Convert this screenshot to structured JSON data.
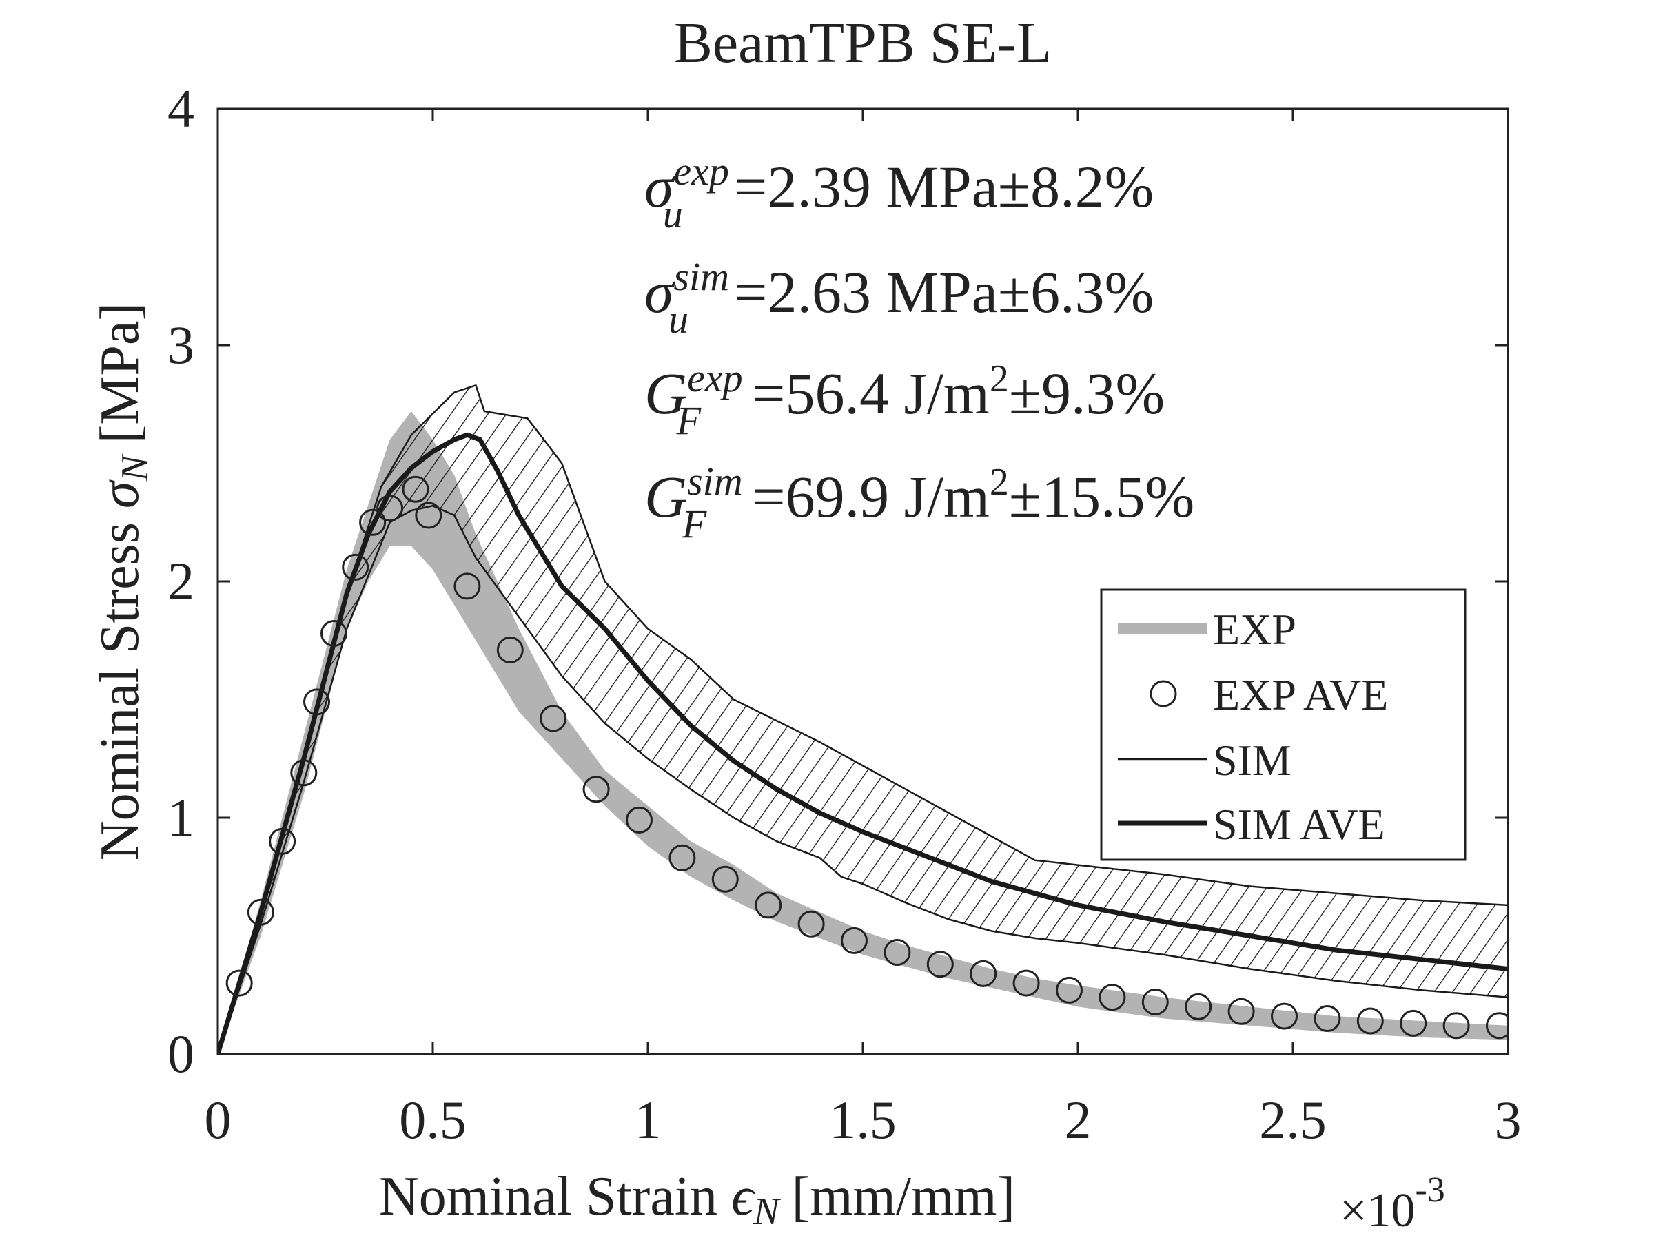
{
  "chart_data": {
    "type": "line",
    "title": "BeamTPB SE-L",
    "xlabel": {
      "prefix": "Nominal Strain ",
      "symbol": "ϵ",
      "subscript": "N",
      "unit": "[mm/mm]",
      "exponent_mult": "×10",
      "exponent_power": "-3"
    },
    "ylabel": {
      "prefix": "Nominal Stress ",
      "symbol": "σ",
      "subscript": "N",
      "unit": "[MPa]"
    },
    "xlim": [
      0,
      3
    ],
    "ylim": [
      0,
      4
    ],
    "xticks": [
      {
        "value": 0,
        "label": "0"
      },
      {
        "value": 0.5,
        "label": "0.5"
      },
      {
        "value": 1,
        "label": "1"
      },
      {
        "value": 1.5,
        "label": "1.5"
      },
      {
        "value": 2,
        "label": "2"
      },
      {
        "value": 2.5,
        "label": "2.5"
      },
      {
        "value": 3,
        "label": "3"
      }
    ],
    "yticks": [
      {
        "value": 0,
        "label": "0"
      },
      {
        "value": 1,
        "label": "1"
      },
      {
        "value": 2,
        "label": "2"
      },
      {
        "value": 3,
        "label": "3"
      },
      {
        "value": 4,
        "label": "4"
      }
    ],
    "annotations": [
      {
        "base": "σ",
        "sup": "exp",
        "sub": "u",
        "text": "=2.39 MPa±8.2%"
      },
      {
        "base": "σ",
        "sup": "sim",
        "sub": "u",
        "text": "=2.63 MPa±6.3%"
      },
      {
        "base": "G",
        "sup": "exp",
        "sub": "F",
        "text": "=56.4 J/m",
        "power": "2",
        "tail": "±9.3%"
      },
      {
        "base": "G",
        "sup": "sim",
        "sub": "F",
        "text": "=69.9 J/m",
        "power": "2",
        "tail": "±15.5%"
      }
    ],
    "legend": {
      "position": "right-middle",
      "entries": [
        {
          "label": "EXP",
          "style": "gray-band"
        },
        {
          "label": "EXP AVE",
          "style": "circle-marker"
        },
        {
          "label": "SIM",
          "style": "thin-line"
        },
        {
          "label": "SIM AVE",
          "style": "thick-line"
        }
      ]
    },
    "series": [
      {
        "name": "EXP",
        "kind": "band",
        "color": "#b3b3b3",
        "upper": [
          [
            0,
            0
          ],
          [
            0.1,
            0.65
          ],
          [
            0.2,
            1.35
          ],
          [
            0.3,
            2.05
          ],
          [
            0.4,
            2.6
          ],
          [
            0.45,
            2.72
          ],
          [
            0.5,
            2.6
          ],
          [
            0.55,
            2.45
          ],
          [
            0.6,
            2.2
          ],
          [
            0.7,
            1.8
          ],
          [
            0.8,
            1.45
          ],
          [
            0.9,
            1.2
          ],
          [
            1.0,
            1.05
          ],
          [
            1.1,
            0.9
          ],
          [
            1.2,
            0.8
          ],
          [
            1.3,
            0.68
          ],
          [
            1.4,
            0.6
          ],
          [
            1.5,
            0.52
          ],
          [
            1.6,
            0.46
          ],
          [
            1.7,
            0.41
          ],
          [
            1.8,
            0.36
          ],
          [
            1.9,
            0.32
          ],
          [
            2.0,
            0.29
          ],
          [
            2.2,
            0.24
          ],
          [
            2.4,
            0.2
          ],
          [
            2.6,
            0.16
          ],
          [
            2.8,
            0.14
          ],
          [
            3.0,
            0.12
          ]
        ],
        "lower": [
          [
            0,
            0
          ],
          [
            0.1,
            0.5
          ],
          [
            0.2,
            1.1
          ],
          [
            0.3,
            1.8
          ],
          [
            0.35,
            2.0
          ],
          [
            0.4,
            2.15
          ],
          [
            0.45,
            2.15
          ],
          [
            0.5,
            2.05
          ],
          [
            0.6,
            1.75
          ],
          [
            0.7,
            1.45
          ],
          [
            0.8,
            1.25
          ],
          [
            0.9,
            1.05
          ],
          [
            1.0,
            0.88
          ],
          [
            1.1,
            0.75
          ],
          [
            1.2,
            0.65
          ],
          [
            1.3,
            0.56
          ],
          [
            1.4,
            0.49
          ],
          [
            1.5,
            0.42
          ],
          [
            1.6,
            0.37
          ],
          [
            1.7,
            0.32
          ],
          [
            1.8,
            0.28
          ],
          [
            1.9,
            0.24
          ],
          [
            2.0,
            0.2
          ],
          [
            2.2,
            0.15
          ],
          [
            2.4,
            0.12
          ],
          [
            2.6,
            0.09
          ],
          [
            2.8,
            0.07
          ],
          [
            3.0,
            0.06
          ]
        ]
      },
      {
        "name": "EXP AVE",
        "kind": "markers",
        "x": [
          0.05,
          0.1,
          0.15,
          0.2,
          0.23,
          0.27,
          0.32,
          0.36,
          0.4,
          0.46,
          0.49,
          0.58,
          0.68,
          0.78,
          0.88,
          0.98,
          1.08,
          1.18,
          1.28,
          1.38,
          1.48,
          1.58,
          1.68,
          1.78,
          1.88,
          1.98,
          2.08,
          2.18,
          2.28,
          2.38,
          2.48,
          2.58,
          2.68,
          2.78,
          2.88,
          2.98
        ],
        "y": [
          0.3,
          0.6,
          0.9,
          1.19,
          1.49,
          1.78,
          2.06,
          2.25,
          2.31,
          2.39,
          2.28,
          1.98,
          1.71,
          1.42,
          1.12,
          0.99,
          0.83,
          0.74,
          0.63,
          0.55,
          0.48,
          0.43,
          0.38,
          0.34,
          0.3,
          0.27,
          0.24,
          0.22,
          0.2,
          0.18,
          0.16,
          0.15,
          0.14,
          0.13,
          0.12,
          0.12
        ]
      },
      {
        "name": "SIM",
        "kind": "hatched-band",
        "color": "#1a1a1a",
        "upper": [
          [
            0,
            0
          ],
          [
            0.1,
            0.6
          ],
          [
            0.2,
            1.25
          ],
          [
            0.3,
            1.95
          ],
          [
            0.38,
            2.4
          ],
          [
            0.45,
            2.62
          ],
          [
            0.55,
            2.8
          ],
          [
            0.6,
            2.83
          ],
          [
            0.62,
            2.72
          ],
          [
            0.72,
            2.69
          ],
          [
            0.75,
            2.62
          ],
          [
            0.8,
            2.5
          ],
          [
            0.9,
            2.0
          ],
          [
            1.0,
            1.8
          ],
          [
            1.1,
            1.67
          ],
          [
            1.2,
            1.5
          ],
          [
            1.4,
            1.32
          ],
          [
            1.5,
            1.22
          ],
          [
            1.6,
            1.12
          ],
          [
            1.7,
            1.02
          ],
          [
            1.8,
            0.92
          ],
          [
            1.9,
            0.82
          ],
          [
            2.0,
            0.8
          ],
          [
            2.2,
            0.76
          ],
          [
            2.4,
            0.71
          ],
          [
            2.6,
            0.68
          ],
          [
            2.8,
            0.65
          ],
          [
            3.0,
            0.63
          ]
        ],
        "lower": [
          [
            0,
            0
          ],
          [
            0.1,
            0.55
          ],
          [
            0.2,
            1.15
          ],
          [
            0.3,
            1.8
          ],
          [
            0.4,
            2.25
          ],
          [
            0.45,
            2.3
          ],
          [
            0.5,
            2.32
          ],
          [
            0.55,
            2.28
          ],
          [
            0.6,
            2.1
          ],
          [
            0.7,
            1.85
          ],
          [
            0.8,
            1.6
          ],
          [
            0.9,
            1.4
          ],
          [
            1.0,
            1.25
          ],
          [
            1.1,
            1.12
          ],
          [
            1.2,
            1.0
          ],
          [
            1.3,
            0.9
          ],
          [
            1.4,
            0.83
          ],
          [
            1.45,
            0.75
          ],
          [
            1.5,
            0.72
          ],
          [
            1.6,
            0.64
          ],
          [
            1.7,
            0.57
          ],
          [
            1.8,
            0.52
          ],
          [
            1.9,
            0.49
          ],
          [
            2.0,
            0.47
          ],
          [
            2.2,
            0.42
          ],
          [
            2.4,
            0.36
          ],
          [
            2.6,
            0.31
          ],
          [
            2.8,
            0.27
          ],
          [
            3.0,
            0.24
          ]
        ]
      },
      {
        "name": "SIM AVE",
        "kind": "line",
        "color": "#1a1a1a",
        "x": [
          0,
          0.1,
          0.2,
          0.3,
          0.35,
          0.4,
          0.45,
          0.5,
          0.55,
          0.58,
          0.61,
          0.65,
          0.7,
          0.8,
          0.9,
          1.0,
          1.1,
          1.2,
          1.3,
          1.4,
          1.5,
          1.6,
          1.7,
          1.8,
          1.9,
          2.0,
          2.2,
          2.4,
          2.6,
          2.8,
          3.0
        ],
        "y": [
          0,
          0.6,
          1.25,
          1.95,
          2.2,
          2.38,
          2.48,
          2.55,
          2.6,
          2.62,
          2.6,
          2.47,
          2.28,
          1.98,
          1.8,
          1.58,
          1.39,
          1.24,
          1.12,
          1.02,
          0.94,
          0.87,
          0.8,
          0.73,
          0.68,
          0.63,
          0.56,
          0.5,
          0.44,
          0.4,
          0.36
        ]
      }
    ]
  }
}
